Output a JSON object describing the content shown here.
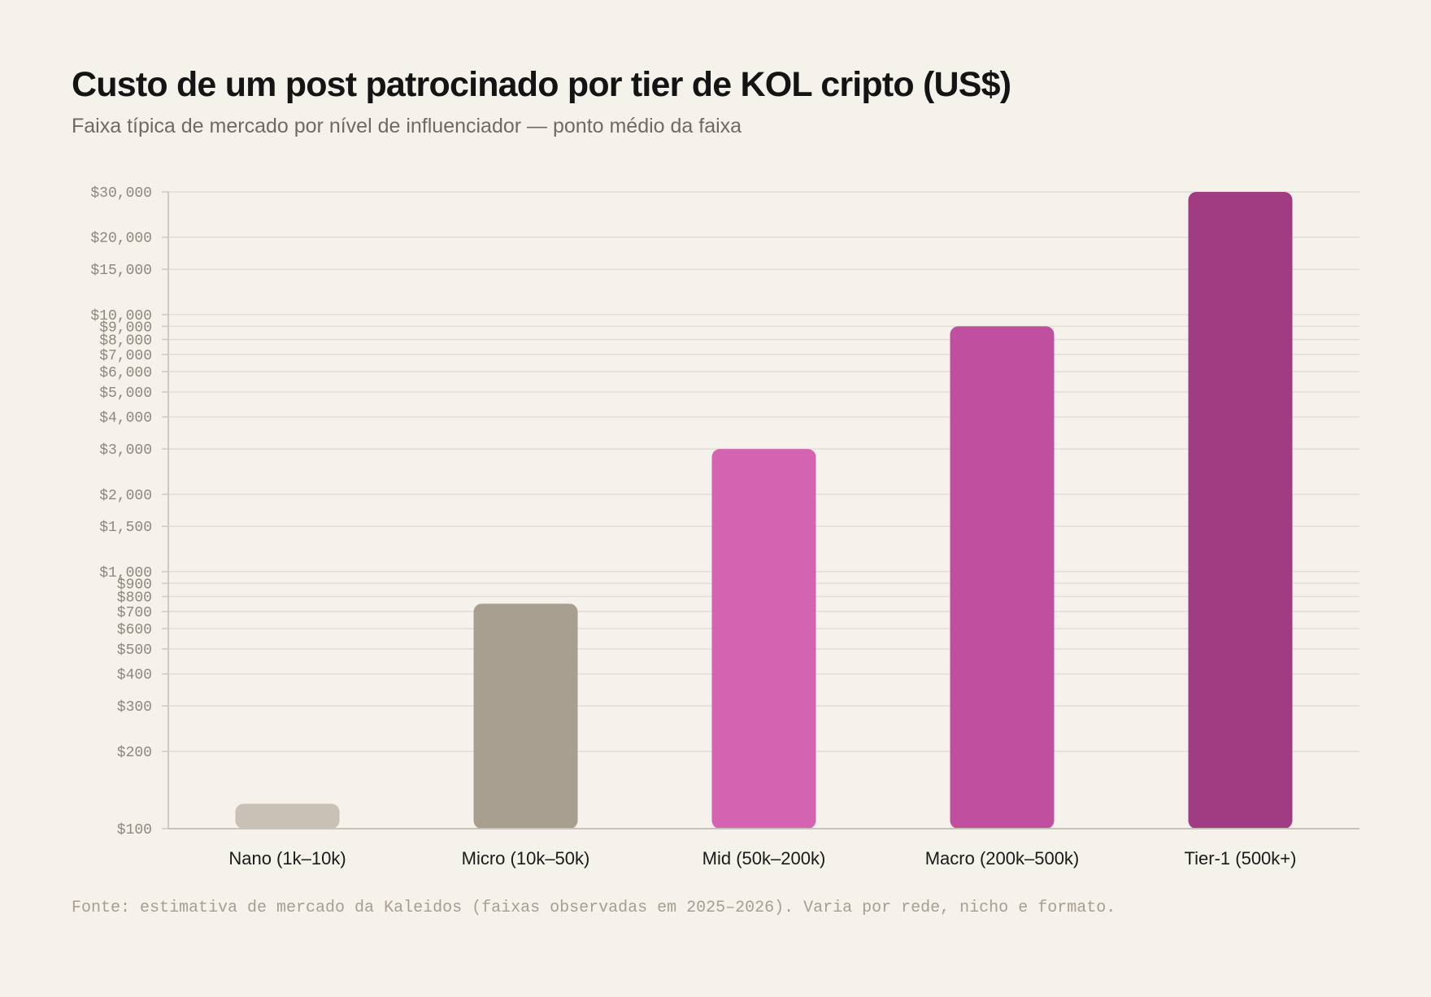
{
  "header": {
    "title": "Custo de um post patrocinado por tier de KOL cripto (US$)",
    "subtitle": "Faixa típica de mercado por nível de influenciador — ponto médio da faixa"
  },
  "footer": {
    "source": "Fonte: estimativa de mercado da Kaleidos (faixas observadas em 2025–2026). Varia por rede, nicho e formato."
  },
  "chart_data": {
    "type": "bar",
    "title": "Custo de um post patrocinado por tier de KOL cripto (US$)",
    "subtitle": "Faixa típica de mercado por nível de influenciador — ponto médio da faixa",
    "categories": [
      "Nano (1k–10k)",
      "Micro (10k–50k)",
      "Mid (50k–200k)",
      "Macro (200k–500k)",
      "Tier-1 (500k+)"
    ],
    "values": [
      125,
      750,
      3000,
      9000,
      30000
    ],
    "colors": [
      "#c9c1b5",
      "#a89e8f",
      "#d463b2",
      "#c04f9f",
      "#a23c82"
    ],
    "ylim": [
      100,
      30000
    ],
    "yscale": "log",
    "yticks": [
      100,
      200,
      300,
      400,
      500,
      600,
      700,
      800,
      900,
      1000,
      1500,
      2000,
      3000,
      4000,
      5000,
      6000,
      7000,
      8000,
      9000,
      10000,
      15000,
      20000,
      30000
    ],
    "ytick_labels": [
      "$100",
      "$200",
      "$300",
      "$400",
      "$500",
      "$600",
      "$700",
      "$800",
      "$900",
      "$1,000",
      "$1,500",
      "$2,000",
      "$3,000",
      "$4,000",
      "$5,000",
      "$6,000",
      "$7,000",
      "$8,000",
      "$9,000",
      "$10,000",
      "$15,000",
      "$20,000",
      "$30,000"
    ],
    "grid": true,
    "legend": "none",
    "xlabel": "",
    "ylabel": ""
  }
}
